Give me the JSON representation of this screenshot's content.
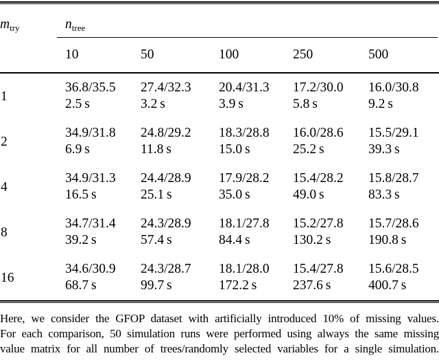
{
  "table": {
    "row_var": {
      "main": "m",
      "sub": "try"
    },
    "col_var": {
      "main": "n",
      "sub": "tree"
    },
    "columns": [
      "10",
      "50",
      "100",
      "250",
      "500"
    ],
    "rows": [
      {
        "label": "1",
        "cells": [
          {
            "value": "36.8/35.5",
            "time": "2.5 s"
          },
          {
            "value": "27.4/32.3",
            "time": "3.2 s"
          },
          {
            "value": "20.4/31.3",
            "time": "3.9 s"
          },
          {
            "value": "17.2/30.0",
            "time": "5.8 s"
          },
          {
            "value": "16.0/30.8",
            "time": "9.2 s"
          }
        ]
      },
      {
        "label": "2",
        "cells": [
          {
            "value": "34.9/31.8",
            "time": "6.9 s"
          },
          {
            "value": "24.8/29.2",
            "time": "11.8 s"
          },
          {
            "value": "18.3/28.8",
            "time": "15.0 s"
          },
          {
            "value": "16.0/28.6",
            "time": "25.2 s"
          },
          {
            "value": "15.5/29.1",
            "time": "39.3 s"
          }
        ]
      },
      {
        "label": "4",
        "cells": [
          {
            "value": "34.9/31.3",
            "time": "16.5 s"
          },
          {
            "value": "24.4/28.9",
            "time": "25.1 s"
          },
          {
            "value": "17.9/28.2",
            "time": "35.0 s"
          },
          {
            "value": "15.4/28.2",
            "time": "49.0 s"
          },
          {
            "value": "15.8/28.7",
            "time": "83.3 s"
          }
        ]
      },
      {
        "label": "8",
        "cells": [
          {
            "value": "34.7/31.4",
            "time": "39.2 s"
          },
          {
            "value": "24.3/28.9",
            "time": "57.4 s"
          },
          {
            "value": "18.1/27.8",
            "time": "84.4 s"
          },
          {
            "value": "15.2/27.8",
            "time": "130.2 s"
          },
          {
            "value": "15.7/28.6",
            "time": "190.8 s"
          }
        ]
      },
      {
        "label": "16",
        "cells": [
          {
            "value": "34.6/30.9",
            "time": "68.7 s"
          },
          {
            "value": "24.3/28.7",
            "time": "99.7 s"
          },
          {
            "value": "18.1/28.0",
            "time": "172.2 s"
          },
          {
            "value": "15.4/27.8",
            "time": "237.6 s"
          },
          {
            "value": "15.6/28.5",
            "time": "400.7 s"
          }
        ]
      }
    ]
  },
  "caption": {
    "lines": [
      "Here, we consider the GFOP dataset with artificially introduced 10% of missing values.",
      "For each comparison, 50 simulation runs were performed using always the same missing",
      "value matrix for all number of trees/randomly selected variables for a single simulation."
    ]
  }
}
